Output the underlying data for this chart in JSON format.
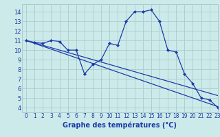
{
  "xlabel": "Graphe des températures (°C)",
  "background_color": "#cdeaea",
  "grid_color": "#aacccc",
  "line_color": "#1a3aaa",
  "x_hours": [
    0,
    1,
    2,
    3,
    4,
    5,
    6,
    7,
    8,
    9,
    10,
    11,
    12,
    13,
    14,
    15,
    16,
    17,
    18,
    19,
    20,
    21,
    22,
    23
  ],
  "series1": [
    11.0,
    10.8,
    10.7,
    11.0,
    10.9,
    10.0,
    10.0,
    7.5,
    8.5,
    9.0,
    10.7,
    10.5,
    13.0,
    14.0,
    14.0,
    14.2,
    13.0,
    10.0,
    9.8,
    7.5,
    6.5,
    5.0,
    4.8,
    4.0
  ],
  "series2": [
    11.0,
    10.7,
    10.4,
    10.1,
    9.8,
    9.5,
    9.2,
    8.9,
    8.6,
    8.3,
    8.0,
    7.7,
    7.4,
    7.1,
    6.8,
    6.5,
    6.2,
    5.9,
    5.6,
    5.3,
    5.0,
    4.7,
    4.4,
    4.1
  ],
  "series3": [
    11.0,
    10.75,
    10.5,
    10.25,
    10.0,
    9.75,
    9.5,
    9.25,
    9.0,
    8.75,
    8.5,
    8.25,
    8.0,
    7.75,
    7.5,
    7.25,
    7.0,
    6.75,
    6.5,
    6.25,
    6.0,
    5.75,
    5.5,
    5.25
  ],
  "ylim": [
    3.5,
    14.8
  ],
  "xlim": [
    -0.5,
    23.0
  ],
  "yticks": [
    4,
    5,
    6,
    7,
    8,
    9,
    10,
    11,
    12,
    13,
    14
  ],
  "xticks": [
    0,
    1,
    2,
    3,
    4,
    5,
    6,
    7,
    8,
    9,
    10,
    11,
    12,
    13,
    14,
    15,
    16,
    17,
    18,
    19,
    20,
    21,
    22,
    23
  ]
}
